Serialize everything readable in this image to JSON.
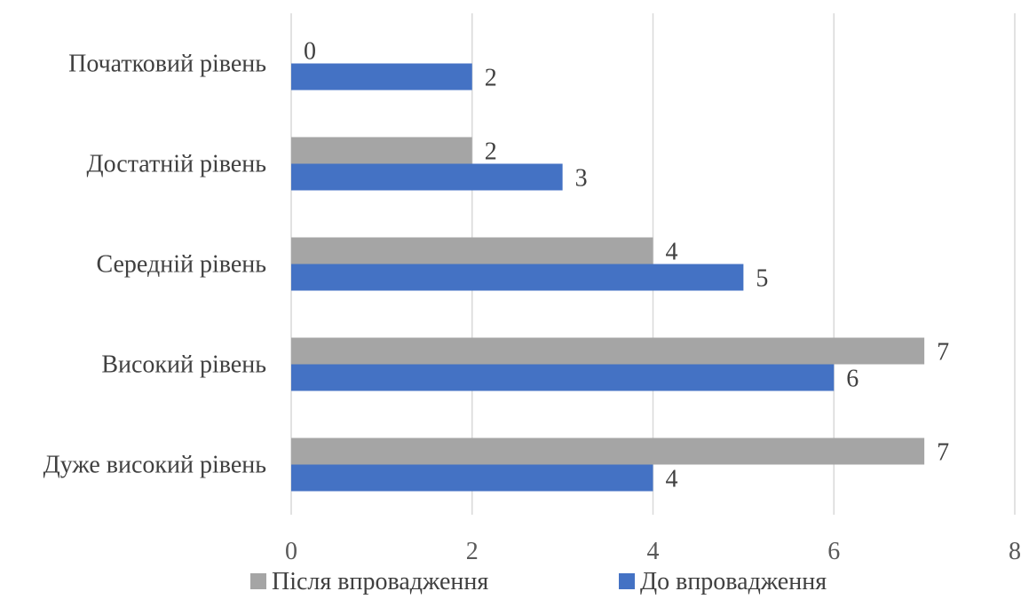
{
  "chart_data": {
    "type": "bar",
    "orientation": "horizontal",
    "categories": [
      "Початковий рівень",
      "Достатній рівень",
      "Середній рівень",
      "Високий рівень",
      "Дуже високий рівень"
    ],
    "series": [
      {
        "name": "Після впровадження",
        "color": "#a5a5a5",
        "values": [
          0,
          2,
          4,
          7,
          7
        ]
      },
      {
        "name": "До впровадження",
        "color": "#4472c4",
        "values": [
          2,
          3,
          5,
          6,
          4
        ]
      }
    ],
    "x_ticks": [
      "0",
      "2",
      "4",
      "6",
      "8"
    ],
    "xlim": [
      0,
      8
    ],
    "grid": true,
    "legend_position": "bottom"
  }
}
